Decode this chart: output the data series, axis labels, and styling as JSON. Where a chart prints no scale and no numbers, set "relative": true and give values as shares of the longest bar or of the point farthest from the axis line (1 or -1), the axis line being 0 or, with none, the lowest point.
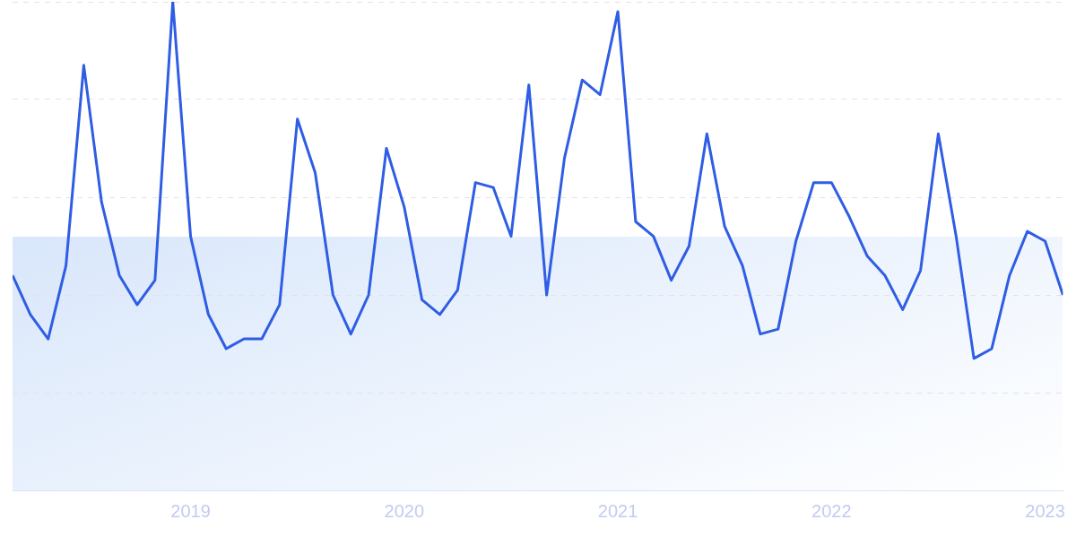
{
  "chart_data": {
    "type": "line",
    "relative": true,
    "color": "#2f5de3",
    "x": [
      "2018-03",
      "2018-04",
      "2018-05",
      "2018-06",
      "2018-07",
      "2018-08",
      "2018-09",
      "2018-10",
      "2018-11",
      "2018-12",
      "2019-01",
      "2019-02",
      "2019-03",
      "2019-04",
      "2019-05",
      "2019-06",
      "2019-07",
      "2019-08",
      "2019-09",
      "2019-10",
      "2019-11",
      "2019-12",
      "2020-01",
      "2020-02",
      "2020-03",
      "2020-04",
      "2020-05",
      "2020-06",
      "2020-07",
      "2020-08",
      "2020-09",
      "2020-10",
      "2020-11",
      "2020-12",
      "2021-01",
      "2021-02",
      "2021-03",
      "2021-04",
      "2021-05",
      "2021-06",
      "2021-07",
      "2021-08",
      "2021-09",
      "2021-10",
      "2021-11",
      "2021-12",
      "2022-01",
      "2022-02",
      "2022-03",
      "2022-04",
      "2022-05",
      "2022-06",
      "2022-07",
      "2022-08",
      "2022-09",
      "2022-10",
      "2022-11",
      "2022-12",
      "2023-01",
      "2023-02"
    ],
    "values": [
      0.44,
      0.36,
      0.31,
      0.46,
      0.87,
      0.59,
      0.44,
      0.38,
      0.43,
      1.0,
      0.52,
      0.36,
      0.29,
      0.31,
      0.31,
      0.38,
      0.76,
      0.65,
      0.4,
      0.32,
      0.4,
      0.7,
      0.58,
      0.39,
      0.36,
      0.41,
      0.63,
      0.62,
      0.52,
      0.83,
      0.4,
      0.68,
      0.84,
      0.81,
      0.98,
      0.55,
      0.52,
      0.43,
      0.5,
      0.73,
      0.54,
      0.46,
      0.32,
      0.33,
      0.51,
      0.63,
      0.63,
      0.56,
      0.48,
      0.44,
      0.37,
      0.45,
      0.73,
      0.52,
      0.27,
      0.29,
      0.44,
      0.53,
      0.51,
      0.4
    ],
    "xlim": [
      "2018-03",
      "2023-02"
    ],
    "xticks": [
      "2019",
      "2020",
      "2021",
      "2022",
      "2023"
    ],
    "grid": "y",
    "legend": false,
    "marker": "none",
    "line_style": "solid"
  }
}
